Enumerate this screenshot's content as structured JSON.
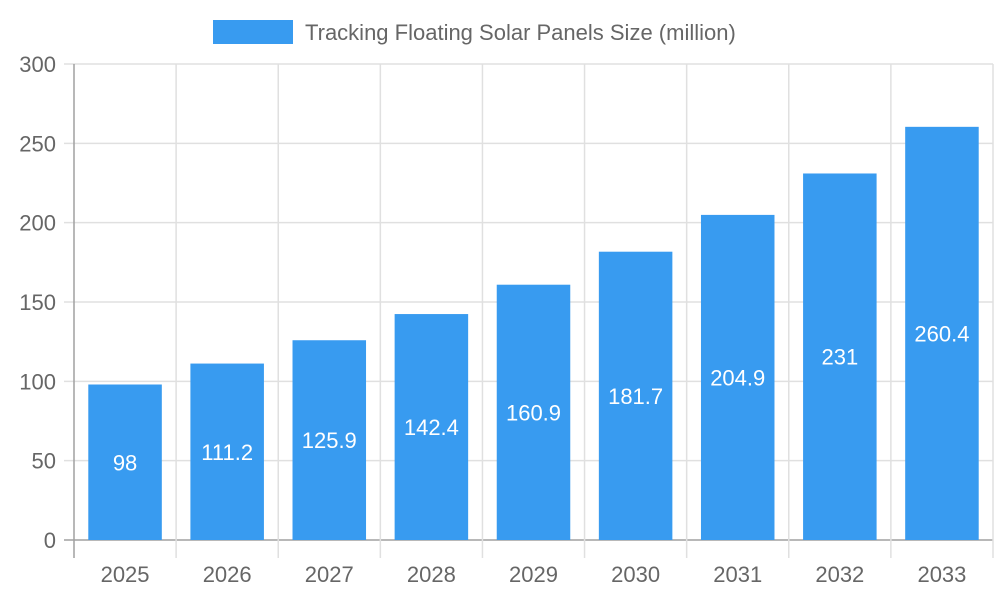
{
  "chart_data": {
    "type": "bar",
    "categories": [
      "2025",
      "2026",
      "2027",
      "2028",
      "2029",
      "2030",
      "2031",
      "2032",
      "2033"
    ],
    "series": [
      {
        "name": "Tracking Floating Solar Panels Size (million)",
        "values": [
          98,
          111.2,
          125.9,
          142.4,
          160.9,
          181.7,
          204.9,
          231,
          260.4
        ]
      }
    ],
    "ylim": [
      0,
      300
    ],
    "yticks": [
      0,
      50,
      100,
      150,
      200,
      250,
      300
    ],
    "grid": true,
    "legend": "top",
    "data_labels": true,
    "colors": {
      "bar": "#389bf0",
      "grid": "#e0e0e0",
      "axis": "#a0a0a0",
      "text": "#666666"
    }
  }
}
